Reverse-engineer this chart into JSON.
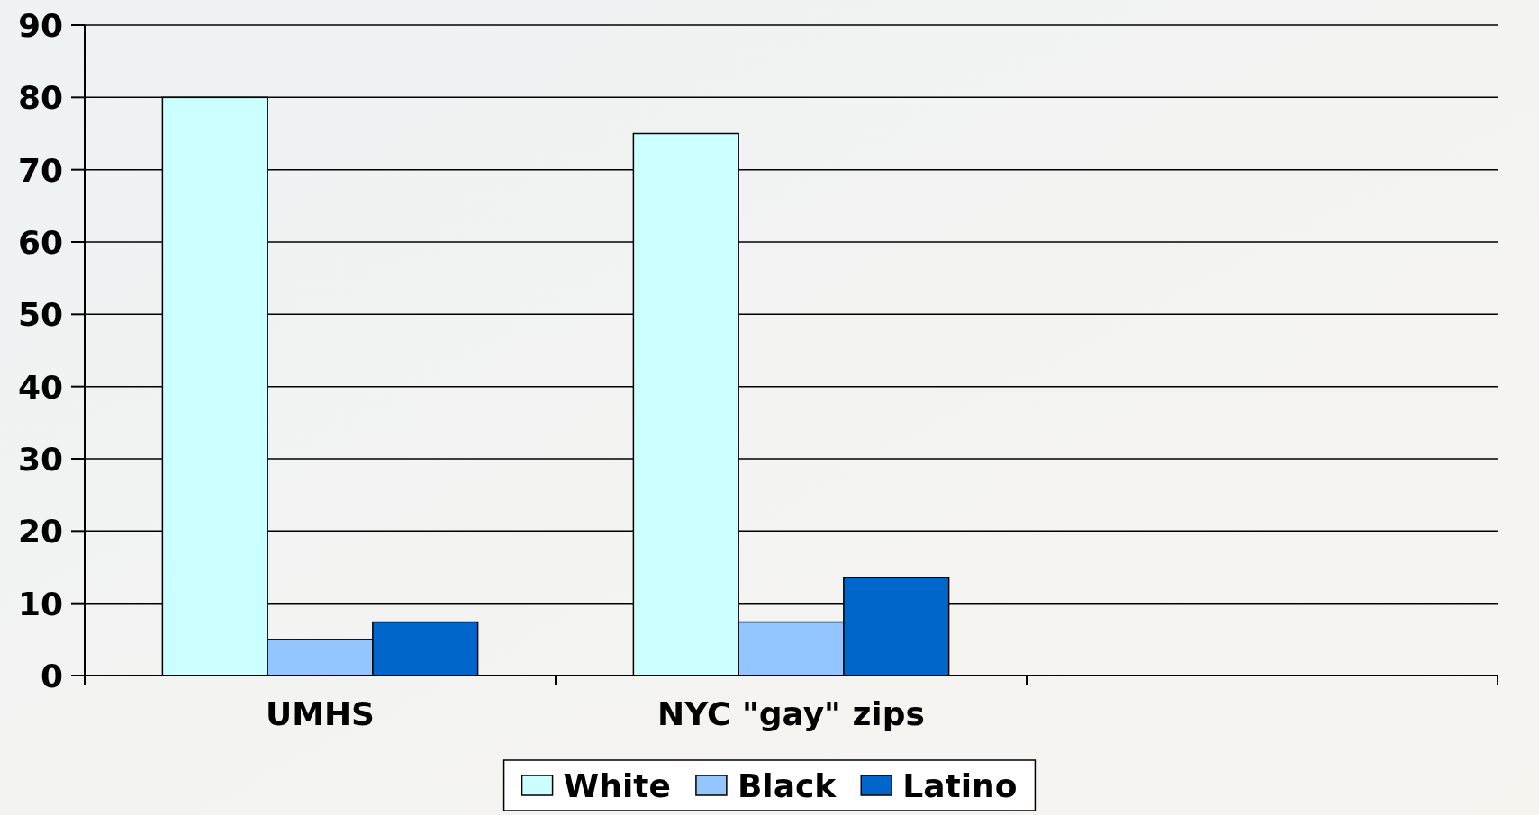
{
  "chart_data": {
    "type": "bar",
    "categories": [
      "UMHS",
      "NYC \"gay\" zips",
      null
    ],
    "series": [
      {
        "name": "White",
        "color": "#ccffff",
        "values": [
          80,
          75,
          null
        ]
      },
      {
        "name": "Black",
        "color": "#93c6ff",
        "values": [
          5,
          7.4,
          null
        ]
      },
      {
        "name": "Latino",
        "color": "#0066cc",
        "values": [
          7.4,
          13.6,
          null
        ]
      }
    ],
    "ylim": [
      0,
      90
    ],
    "yticks": [
      0,
      10,
      20,
      30,
      40,
      50,
      60,
      70,
      80,
      90
    ],
    "grid": "y",
    "legend": "bottom"
  }
}
